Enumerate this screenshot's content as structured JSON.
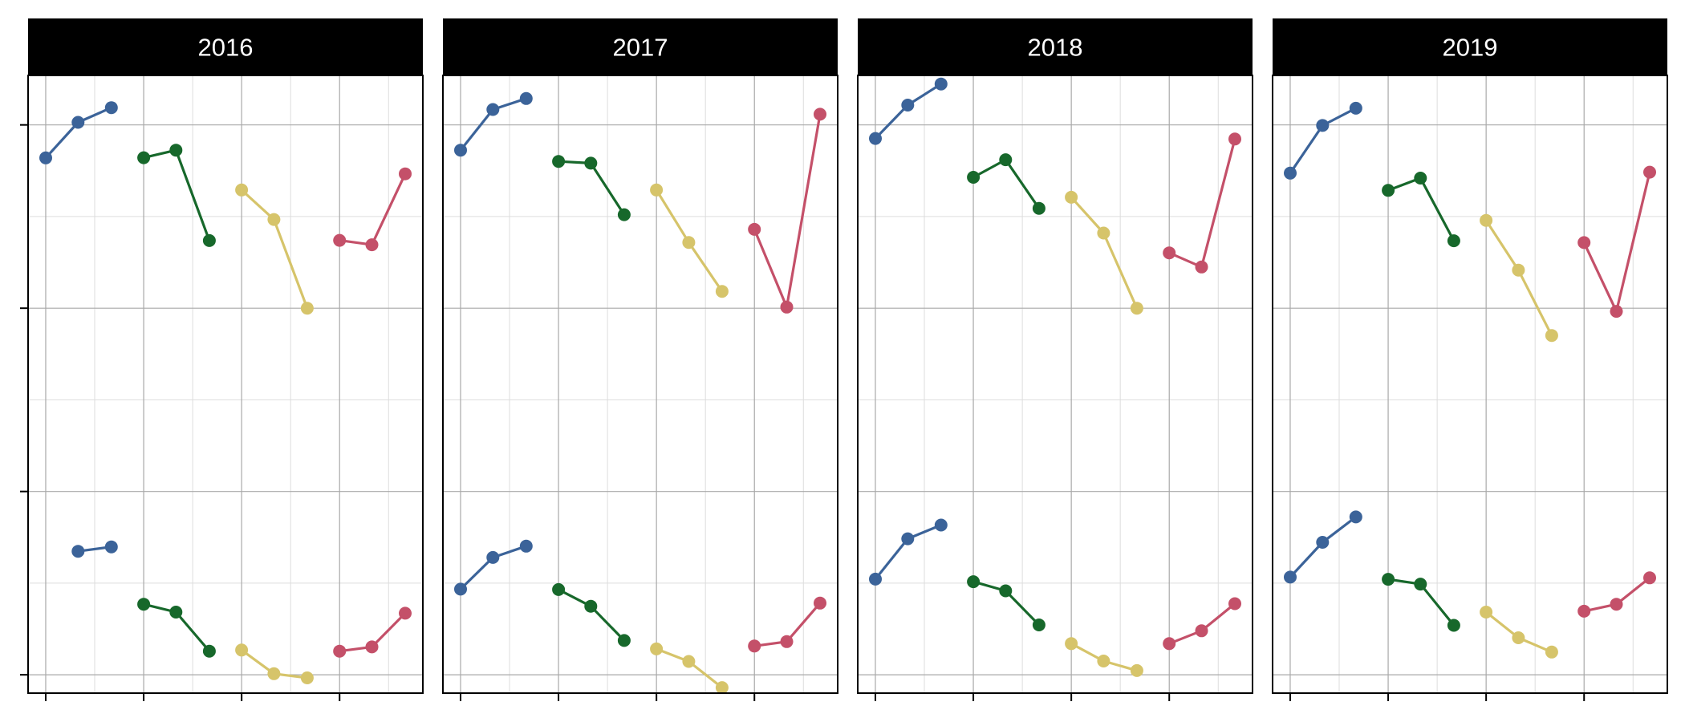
{
  "chart_data": {
    "type": "line",
    "facets": [
      "2016",
      "2017",
      "2018",
      "2019"
    ],
    "colors": [
      "#3b6399",
      "#17682b",
      "#d6c46a",
      "#c45069"
    ],
    "grid": true,
    "legend": "none",
    "y_tick_count": 4,
    "x_tick_count": 4,
    "note": "",
    "panels": [
      {
        "facet": "2016",
        "series": [
          {
            "color_index": 0,
            "x": [
              0.0,
              0.33,
              0.67
            ],
            "y": [
              0.82,
              1.014,
              1.094
            ]
          },
          {
            "color_index": 1,
            "x": [
              1.0,
              1.33,
              1.67
            ],
            "y": [
              0.821,
              0.862,
              0.369
            ]
          },
          {
            "color_index": 2,
            "x": [
              2.0,
              2.33,
              2.67
            ],
            "y": [
              0.645,
              0.484,
              0.0
            ]
          },
          {
            "color_index": 3,
            "x": [
              3.0,
              3.33,
              3.67
            ],
            "y": [
              0.37,
              0.346,
              0.733
            ]
          },
          {
            "color_index": 0,
            "x": [
              0.33,
              0.67
            ],
            "y": [
              -1.326,
              -1.302
            ]
          },
          {
            "color_index": 1,
            "x": [
              1.0,
              1.33,
              1.67
            ],
            "y": [
              -1.615,
              -1.658,
              -1.871
            ]
          },
          {
            "color_index": 2,
            "x": [
              2.0,
              2.33,
              2.67
            ],
            "y": [
              -1.865,
              -1.994,
              -2.017
            ]
          },
          {
            "color_index": 3,
            "x": [
              3.0,
              3.33,
              3.67
            ],
            "y": [
              -1.871,
              -1.848,
              -1.664
            ]
          }
        ]
      },
      {
        "facet": "2017",
        "series": [
          {
            "color_index": 0,
            "x": [
              0.0,
              0.33,
              0.67
            ],
            "y": [
              0.862,
              1.084,
              1.144
            ]
          },
          {
            "color_index": 1,
            "x": [
              1.0,
              1.33,
              1.67
            ],
            "y": [
              0.801,
              0.791,
              0.51
            ]
          },
          {
            "color_index": 2,
            "x": [
              2.0,
              2.33,
              2.67
            ],
            "y": [
              0.645,
              0.359,
              0.092
            ]
          },
          {
            "color_index": 3,
            "x": [
              3.0,
              3.33,
              3.67
            ],
            "y": [
              0.43,
              0.006,
              1.058
            ]
          },
          {
            "color_index": 0,
            "x": [
              0.0,
              0.33,
              0.67
            ],
            "y": [
              -1.533,
              -1.36,
              -1.298
            ]
          },
          {
            "color_index": 1,
            "x": [
              1.0,
              1.33,
              1.67
            ],
            "y": [
              -1.535,
              -1.626,
              -1.813
            ]
          },
          {
            "color_index": 2,
            "x": [
              2.0,
              2.33,
              2.67
            ],
            "y": [
              -1.859,
              -1.927,
              -2.07
            ]
          },
          {
            "color_index": 3,
            "x": [
              3.0,
              3.33,
              3.67
            ],
            "y": [
              -1.843,
              -1.819,
              -1.609
            ]
          }
        ]
      },
      {
        "facet": "2018",
        "series": [
          {
            "color_index": 0,
            "x": [
              0.0,
              0.33,
              0.67
            ],
            "y": [
              0.926,
              1.108,
              1.223
            ]
          },
          {
            "color_index": 1,
            "x": [
              1.0,
              1.33,
              1.67
            ],
            "y": [
              0.714,
              0.81,
              0.545
            ]
          },
          {
            "color_index": 2,
            "x": [
              2.0,
              2.33,
              2.67
            ],
            "y": [
              0.605,
              0.41,
              0.0
            ]
          },
          {
            "color_index": 3,
            "x": [
              3.0,
              3.33,
              3.67
            ],
            "y": [
              0.302,
              0.225,
              0.923
            ]
          },
          {
            "color_index": 0,
            "x": [
              0.0,
              0.33,
              0.67
            ],
            "y": [
              -1.478,
              -1.258,
              -1.183
            ]
          },
          {
            "color_index": 1,
            "x": [
              1.0,
              1.33,
              1.67
            ],
            "y": [
              -1.492,
              -1.542,
              -1.728
            ]
          },
          {
            "color_index": 2,
            "x": [
              2.0,
              2.33,
              2.67
            ],
            "y": [
              -1.83,
              -1.925,
              -1.977
            ]
          },
          {
            "color_index": 3,
            "x": [
              3.0,
              3.33,
              3.67
            ],
            "y": [
              -1.83,
              -1.76,
              -1.612
            ]
          }
        ]
      },
      {
        "facet": "2019",
        "series": [
          {
            "color_index": 0,
            "x": [
              0.0,
              0.33,
              0.67
            ],
            "y": [
              0.737,
              0.997,
              1.091
            ]
          },
          {
            "color_index": 1,
            "x": [
              1.0,
              1.33,
              1.67
            ],
            "y": [
              0.643,
              0.71,
              0.368
            ]
          },
          {
            "color_index": 2,
            "x": [
              2.0,
              2.33,
              2.67
            ],
            "y": [
              0.479,
              0.208,
              -0.149
            ]
          },
          {
            "color_index": 3,
            "x": [
              3.0,
              3.33,
              3.67
            ],
            "y": [
              0.358,
              -0.017,
              0.742
            ]
          },
          {
            "color_index": 0,
            "x": [
              0.0,
              0.33,
              0.67
            ],
            "y": [
              -1.467,
              -1.277,
              -1.139
            ]
          },
          {
            "color_index": 1,
            "x": [
              1.0,
              1.33,
              1.67
            ],
            "y": [
              -1.479,
              -1.505,
              -1.73
            ]
          },
          {
            "color_index": 2,
            "x": [
              2.0,
              2.33,
              2.67
            ],
            "y": [
              -1.658,
              -1.798,
              -1.876
            ]
          },
          {
            "color_index": 3,
            "x": [
              3.0,
              3.33,
              3.67
            ],
            "y": [
              -1.653,
              -1.615,
              -1.471
            ]
          }
        ]
      }
    ],
    "xlim": [
      -0.18,
      3.85
    ],
    "ylim": [
      -2.1,
      1.27
    ]
  }
}
